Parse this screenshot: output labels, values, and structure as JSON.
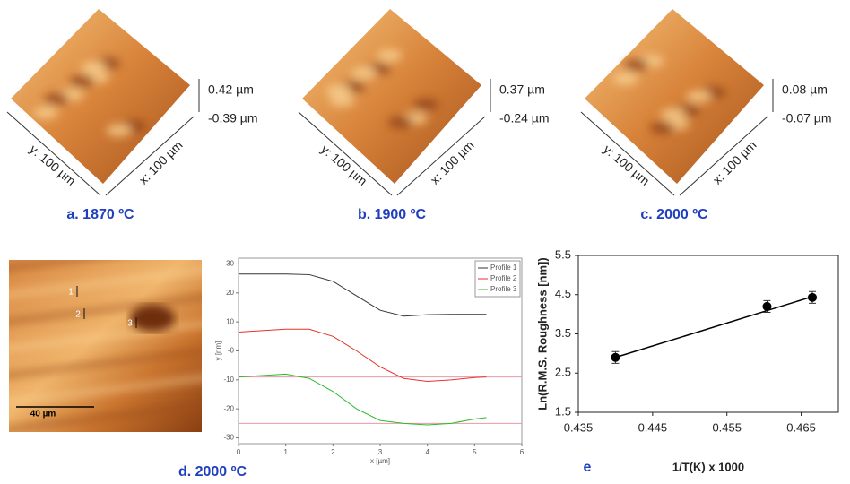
{
  "panels": {
    "a": {
      "caption": "a. 1870 ºC",
      "zmax": "0.42 µm",
      "zmin": "-0.39 µm",
      "y_axis": "y: 100 µm",
      "x_axis": "x: 100 µm"
    },
    "b": {
      "caption": "b. 1900 ºC",
      "zmax": "0.37 µm",
      "zmin": "-0.24 µm",
      "y_axis": "y: 100 µm",
      "x_axis": "x: 100 µm"
    },
    "c": {
      "caption": "c. 2000 ºC",
      "zmax": "0.08 µm",
      "zmin": "-0.07 µm",
      "y_axis": "y: 100 µm",
      "x_axis": "x: 100 µm"
    },
    "d": {
      "caption": "d. 2000 ºC",
      "scale_bar": "40 µm",
      "markers": [
        "1",
        "2",
        "3"
      ]
    }
  },
  "chart_data": [
    {
      "type": "line",
      "xlabel": "x [µm]",
      "ylabel": "y [nm]",
      "x": [
        0,
        0.5,
        1,
        1.5,
        2,
        2.5,
        3,
        3.5,
        4,
        4.5,
        5,
        5.25
      ],
      "series": [
        {
          "name": "Profile 1",
          "color": "#333333",
          "values": [
            26.5,
            26.5,
            26.5,
            26.3,
            24,
            19,
            14,
            12,
            12.5,
            12.6,
            12.6,
            12.6
          ]
        },
        {
          "name": "Profile 2",
          "color": "#e8322b",
          "values": [
            6.5,
            7,
            7.5,
            7.5,
            5,
            0,
            -5.5,
            -9.5,
            -10.5,
            -10,
            -9.2,
            -9
          ]
        },
        {
          "name": "Profile 3",
          "color": "#2cbb2c",
          "values": [
            -9,
            -8.5,
            -8,
            -9.5,
            -14,
            -20,
            -24,
            -25,
            -25.5,
            -25,
            -23.5,
            -23
          ]
        }
      ],
      "hlines": [
        -9,
        -25
      ],
      "hline_color": "#e89aa8",
      "xlim": [
        0,
        6
      ],
      "xticks": [
        0,
        1,
        2,
        3,
        4,
        5,
        6
      ],
      "ylim": [
        -32,
        32
      ],
      "yticks": [
        30,
        20,
        10,
        {
          "value": 0,
          "label": "-0"
        },
        -10,
        -20,
        -30
      ],
      "legend": "upper right"
    },
    {
      "type": "scatter",
      "label": "e",
      "xlabel": "1/T(K) x 1000",
      "ylabel": "Ln(R.M.S. Roughness [nm])",
      "x": [
        0.44,
        0.4604,
        0.4665
      ],
      "values": [
        2.9,
        4.2,
        4.43
      ],
      "errors": [
        0.15,
        0.15,
        0.15
      ],
      "color": "#000000",
      "trendline": {
        "x": [
          0.44,
          0.4665
        ],
        "values": [
          2.9,
          4.45
        ]
      },
      "xlim": [
        0.435,
        0.47
      ],
      "xticks": [
        0.435,
        0.445,
        0.455,
        0.465
      ],
      "ylim": [
        1.5,
        5.5
      ],
      "yticks": [
        1.5,
        2.5,
        3.5,
        4.5,
        5.5
      ]
    }
  ]
}
